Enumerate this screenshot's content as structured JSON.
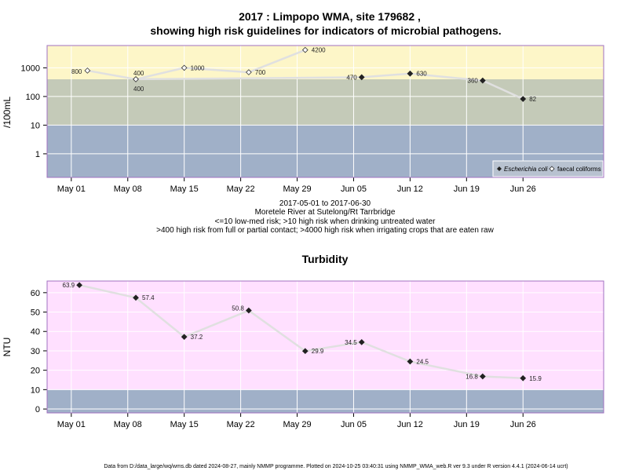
{
  "chart_data": [
    {
      "type": "line",
      "title_line1": "2017 : Limpopo WMA, site 179682 ,",
      "title_line2": "showing high risk guidelines for indicators of microbial pathogens.",
      "ylabel": "/100mL",
      "y_scale": "log",
      "ylim": [
        0.15,
        6000
      ],
      "y_ticks": [
        1,
        10,
        100,
        1000
      ],
      "y_tick_labels": [
        "1",
        "10",
        "100",
        "1000"
      ],
      "x_ticks": [
        "2017-05-01",
        "2017-05-08",
        "2017-05-15",
        "2017-05-22",
        "2017-05-29",
        "2017-06-05",
        "2017-06-12",
        "2017-06-19",
        "2017-06-26"
      ],
      "x_tick_labels": [
        "May 01",
        "May 08",
        "May 15",
        "May 22",
        "May 29",
        "Jun 05",
        "Jun 12",
        "Jun 19",
        "Jun 26"
      ],
      "xlim": [
        "2016-04-30T17:00",
        "2017-07-06"
      ],
      "bands": [
        {
          "from": 0.15,
          "to": 10,
          "color": "#a0b0c8"
        },
        {
          "from": 10,
          "to": 400,
          "color": "#c4cab8"
        },
        {
          "from": 400,
          "to": 6000,
          "color": "#fdf6c8"
        }
      ],
      "series": [
        {
          "name": "Escherichia coli",
          "marker": "filled-diamond",
          "points": [
            {
              "x": "2017-05-09",
              "y": 400,
              "label": "400"
            },
            {
              "x": "2017-06-06",
              "y": 470,
              "label": "470"
            },
            {
              "x": "2017-06-12",
              "y": 630,
              "label": "630"
            },
            {
              "x": "2017-06-21",
              "y": 360,
              "label": "360"
            },
            {
              "x": "2017-06-26",
              "y": 82,
              "label": "82"
            }
          ]
        },
        {
          "name": "faecal coliforms",
          "marker": "open-diamond",
          "points": [
            {
              "x": "2017-05-03",
              "y": 800,
              "label": "800"
            },
            {
              "x": "2017-05-09",
              "y": 400,
              "label": "400"
            },
            {
              "x": "2017-05-15",
              "y": 1000,
              "label": "1000"
            },
            {
              "x": "2017-05-23",
              "y": 700,
              "label": "700"
            },
            {
              "x": "2017-05-30",
              "y": 4200,
              "label": "4200"
            }
          ]
        }
      ],
      "legend_position": "bottom-right",
      "grid": true
    },
    {
      "type": "line",
      "title": "Turbidity",
      "ylabel": "NTU",
      "ylim": [
        -2,
        66
      ],
      "y_ticks": [
        0,
        10,
        20,
        30,
        40,
        50,
        60
      ],
      "y_tick_labels": [
        "0",
        "10",
        "20",
        "30",
        "40",
        "50",
        "60"
      ],
      "x_ticks": [
        "2017-05-01",
        "2017-05-08",
        "2017-05-15",
        "2017-05-22",
        "2017-05-29",
        "2017-06-05",
        "2017-06-12",
        "2017-06-19",
        "2017-06-26"
      ],
      "x_tick_labels": [
        "May 01",
        "May 08",
        "May 15",
        "May 22",
        "May 29",
        "Jun 05",
        "Jun 12",
        "Jun 19",
        "Jun 26"
      ],
      "xlim": [
        "2017-04-30",
        "2017-07-06"
      ],
      "bands": [
        {
          "from": -2,
          "to": 10,
          "color": "#a0b0c8"
        },
        {
          "from": 10,
          "to": 66,
          "color": "#ffe0ff"
        }
      ],
      "series": [
        {
          "marker": "filled-diamond",
          "points": [
            {
              "x": "2017-05-02",
              "y": 63.9,
              "label": "63.9"
            },
            {
              "x": "2017-05-09",
              "y": 57.4,
              "label": "57.4"
            },
            {
              "x": "2017-05-15",
              "y": 37.2,
              "label": "37.2"
            },
            {
              "x": "2017-05-23",
              "y": 50.8,
              "label": "50.8"
            },
            {
              "x": "2017-05-30",
              "y": 29.9,
              "label": "29.9"
            },
            {
              "x": "2017-06-06",
              "y": 34.5,
              "label": "34.5"
            },
            {
              "x": "2017-06-12",
              "y": 24.5,
              "label": "24.5"
            },
            {
              "x": "2017-06-21",
              "y": 16.8,
              "label": "16.8"
            },
            {
              "x": "2017-06-26",
              "y": 15.9,
              "label": "15.9"
            }
          ]
        }
      ],
      "grid": true
    }
  ],
  "subtitle": {
    "date_range": "2017-05-01 to 2017-06-30",
    "site": "Moretele River at Sutelong/Rt Tarrbridge",
    "risk_note_1": "<=10 low-med risk; >10 high risk when drinking untreated water",
    "risk_note_2": ">400 high risk from full or partial contact; >4000 high risk when irrigating crops that are eaten raw"
  },
  "footer": "Data from D:/data_large/wq/wms.db dated 2024-08-27, mainly NMMP programme. Plotted on 2024-10-25 03:40:31 using NMMP_WMA_web.R ver 9.3 under R version 4.4.1 (2024-06-14 ucrt)",
  "colors": {
    "line": "#e0e0e0",
    "marker_fill": "#222222",
    "grid": "#ffffff",
    "frame": "#a070c0"
  }
}
